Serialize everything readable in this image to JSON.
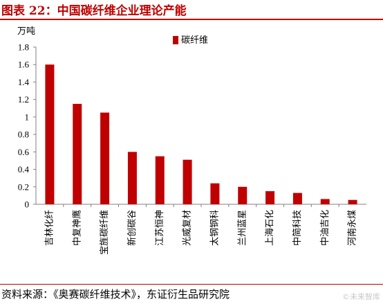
{
  "figure_title": "图表 22：中国碳纤维企业理论产能",
  "source_note": "资料来源：《奥赛碳纤维技术》，东证衍生品研究院",
  "watermark": "©未来智库",
  "colors": {
    "accent": "#c00000",
    "bar": "#c00000",
    "axis": "#7f7f7f"
  },
  "chart_data": {
    "type": "bar",
    "ylabel": "万吨",
    "ylim": [
      0,
      1.8
    ],
    "yticks": [
      "0",
      "0.2",
      "0.4",
      "0.6",
      "0.8",
      "1",
      "1.2",
      "1.4",
      "1.6",
      "1.8"
    ],
    "grid": false,
    "legend_position": "top-right",
    "series": [
      {
        "name": "碳纤维",
        "values": [
          1.6,
          1.15,
          1.05,
          0.6,
          0.55,
          0.51,
          0.24,
          0.2,
          0.15,
          0.13,
          0.06,
          0.05
        ]
      }
    ],
    "categories": [
      "吉林化纤",
      "中复神鹰",
      "宝旌碳纤维",
      "新创碳谷",
      "江苏恒神",
      "光威复材",
      "太钢钢科",
      "兰州蓝星",
      "上海石化",
      "中简科技",
      "中油吉化",
      "河南永煤"
    ]
  }
}
